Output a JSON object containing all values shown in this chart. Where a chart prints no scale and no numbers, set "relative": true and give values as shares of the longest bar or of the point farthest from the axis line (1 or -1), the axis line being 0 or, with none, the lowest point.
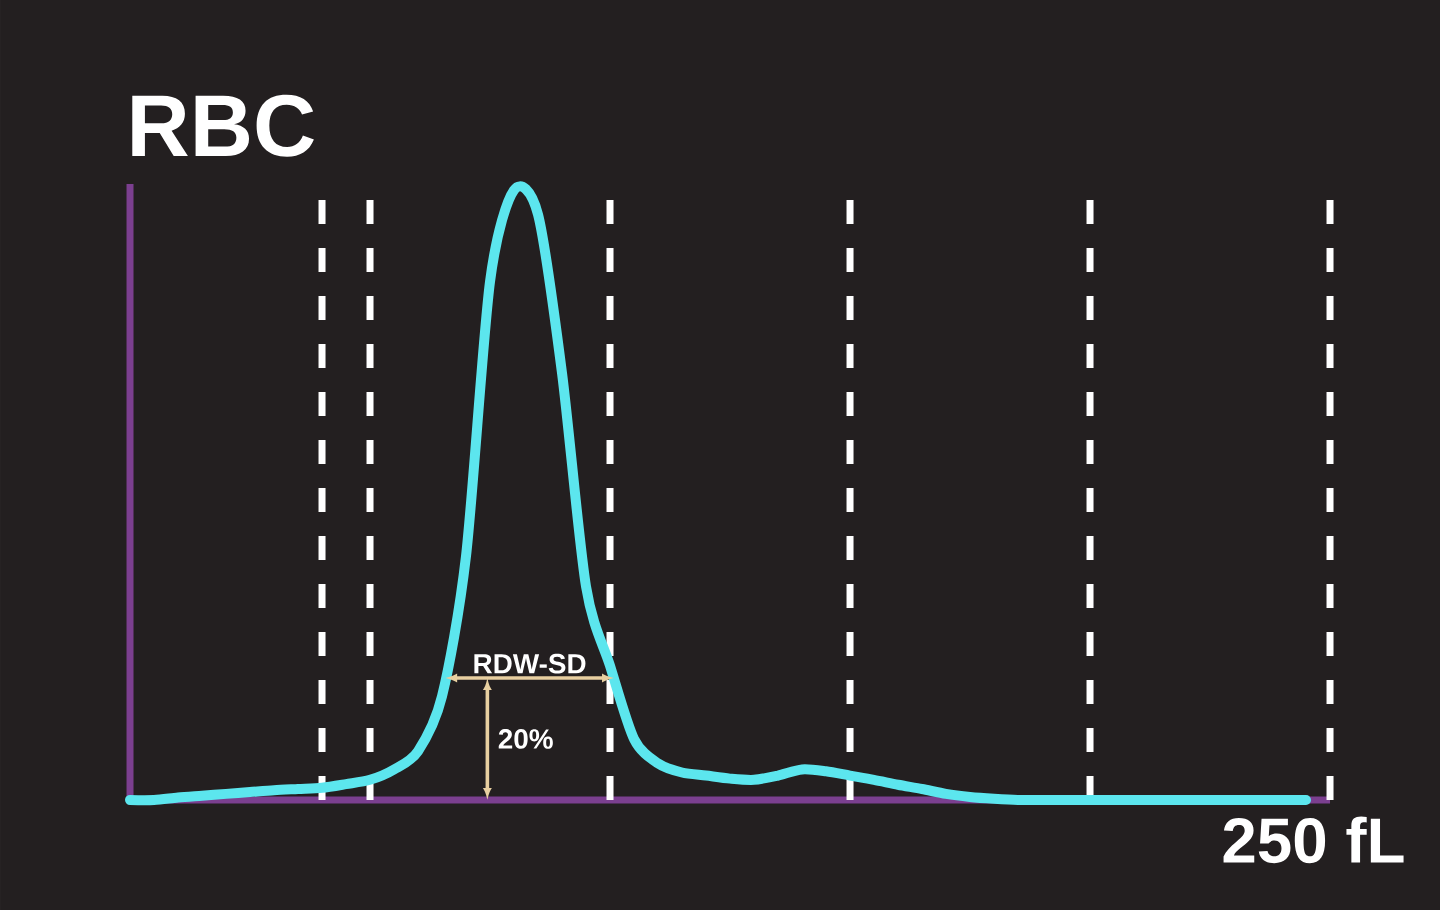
{
  "chart_data": {
    "type": "line",
    "title": "RBC",
    "relative": true,
    "color": "#5ce6ee",
    "categories": [
      null,
      null,
      null,
      null,
      null,
      null,
      null,
      null,
      null,
      null,
      null,
      null,
      null,
      null,
      null,
      null,
      null,
      null,
      null,
      null,
      null,
      null,
      null,
      null,
      null,
      null,
      null,
      null,
      null,
      null,
      null,
      null,
      null,
      null,
      null,
      null,
      null,
      null,
      null,
      null,
      null,
      null,
      null,
      null,
      null,
      null,
      null,
      null,
      null,
      null,
      null
    ],
    "values": [
      0,
      0,
      0.004,
      0.007,
      0.01,
      0.013,
      0.016,
      0.018,
      0.02,
      0.026,
      0.033,
      0.05,
      0.08,
      0.17,
      0.4,
      0.85,
      1,
      0.96,
      0.7,
      0.35,
      0.22,
      0.1,
      0.06,
      0.045,
      0.04,
      0.035,
      0.033,
      0.04,
      0.05,
      0.047,
      0.04,
      0.033,
      0.025,
      0.018,
      0.01,
      0.005,
      0.002,
      0,
      0,
      0,
      0,
      0,
      0,
      0,
      0,
      0,
      0,
      0,
      0,
      0,
      null
    ],
    "grid": "x",
    "annotations": [
      "RDW-SD",
      "20%",
      "250 fL"
    ]
  }
}
